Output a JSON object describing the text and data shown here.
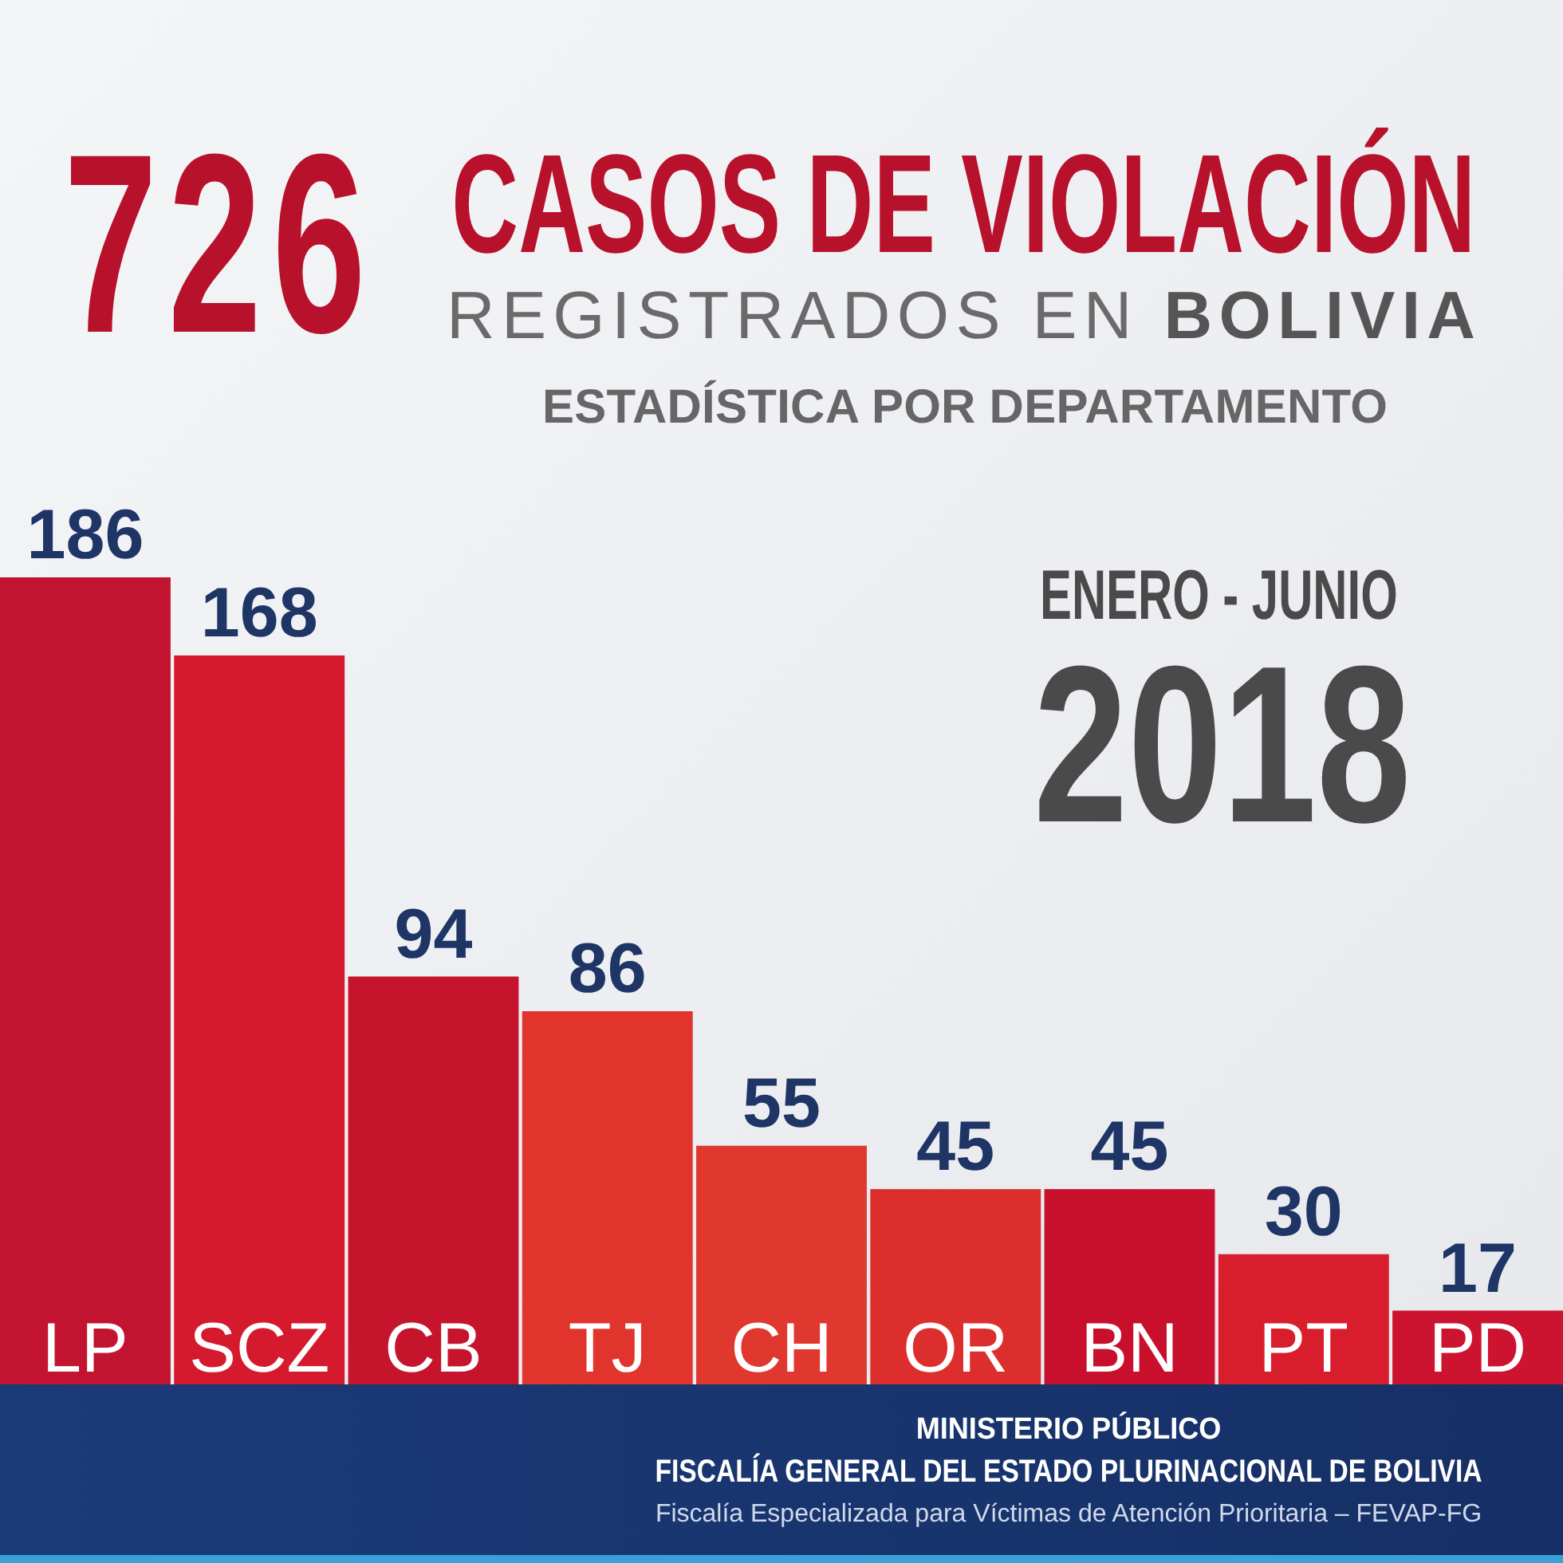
{
  "chart_data": {
    "type": "bar",
    "title": "726 CASOS DE VIOLACIÓN",
    "subtitle": "REGISTRADOS EN BOLIVIA\nESTADÍSTICA POR DEPARTAMENTO",
    "categories": [
      "LP",
      "SCZ",
      "CB",
      "TJ",
      "CH",
      "OR",
      "BN",
      "PT",
      "PD"
    ],
    "values": [
      186,
      168,
      94,
      86,
      55,
      45,
      45,
      30,
      17
    ],
    "colors": [
      "#c21430",
      "#d41a2c",
      "#c6142c",
      "#e0342c",
      "#e0382e",
      "#dc2e2c",
      "#c8102c",
      "#d81e2c",
      "#cc1430"
    ],
    "data_labels": true,
    "annotations": [
      "ENERO - JUNIO",
      "2018",
      "MINISTERIO PÚBLICO",
      "FISCALÍA GENERAL DEL ESTADO PLURINACIONAL DE BOLIVIA",
      "Fiscalía Especializada para Víctimas de Atención Prioritaria – FEVAP-FG"
    ]
  }
}
